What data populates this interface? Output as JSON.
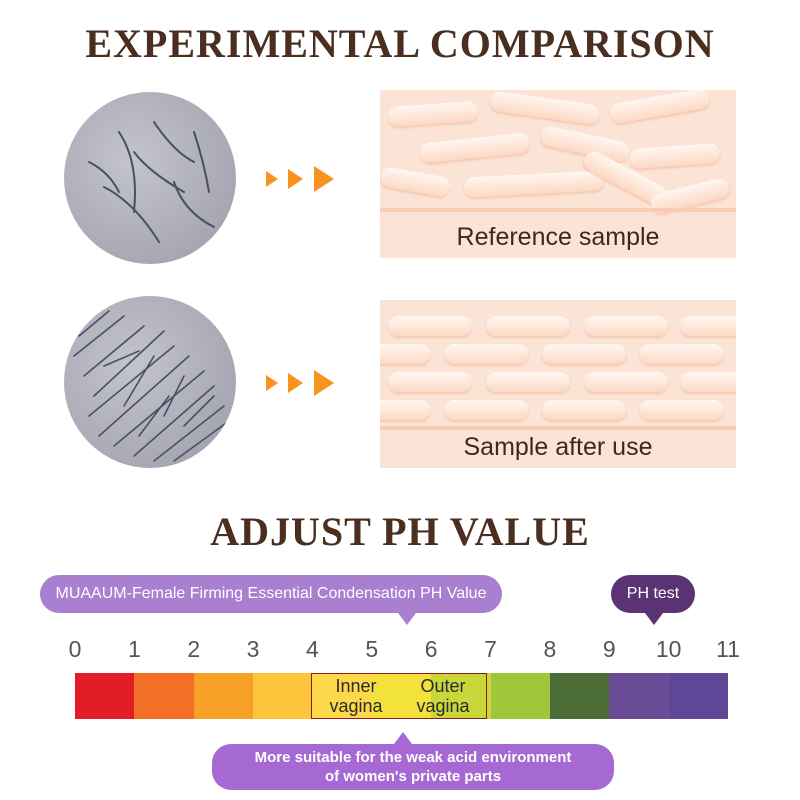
{
  "section1": {
    "title": "EXPERIMENTAL COMPARISON"
  },
  "comparison": {
    "reference_caption": "Reference sample",
    "after_caption": "Sample after use"
  },
  "section2": {
    "title": "ADJUST PH VALUE"
  },
  "ph": {
    "top_label": "MUAAUM-Female Firming Essential Condensation PH Value",
    "test_label": "PH test",
    "scale": [
      "0",
      "1",
      "2",
      "3",
      "4",
      "5",
      "6",
      "7",
      "8",
      "9",
      "10",
      "11"
    ],
    "colors": [
      "#e21d25",
      "#f26f25",
      "#f6a028",
      "#fbc43a",
      "#fcd84a",
      "#f2e23b",
      "#c9d73a",
      "#a0c63c",
      "#4b6c37",
      "#6b4d97",
      "#5d4796"
    ],
    "inner_zone": "Inner\nvagina",
    "outer_zone": "Outer\nvagina",
    "bottom_note_line1": "More suitable for the weak acid environment",
    "bottom_note_line2": "of women's private parts"
  }
}
